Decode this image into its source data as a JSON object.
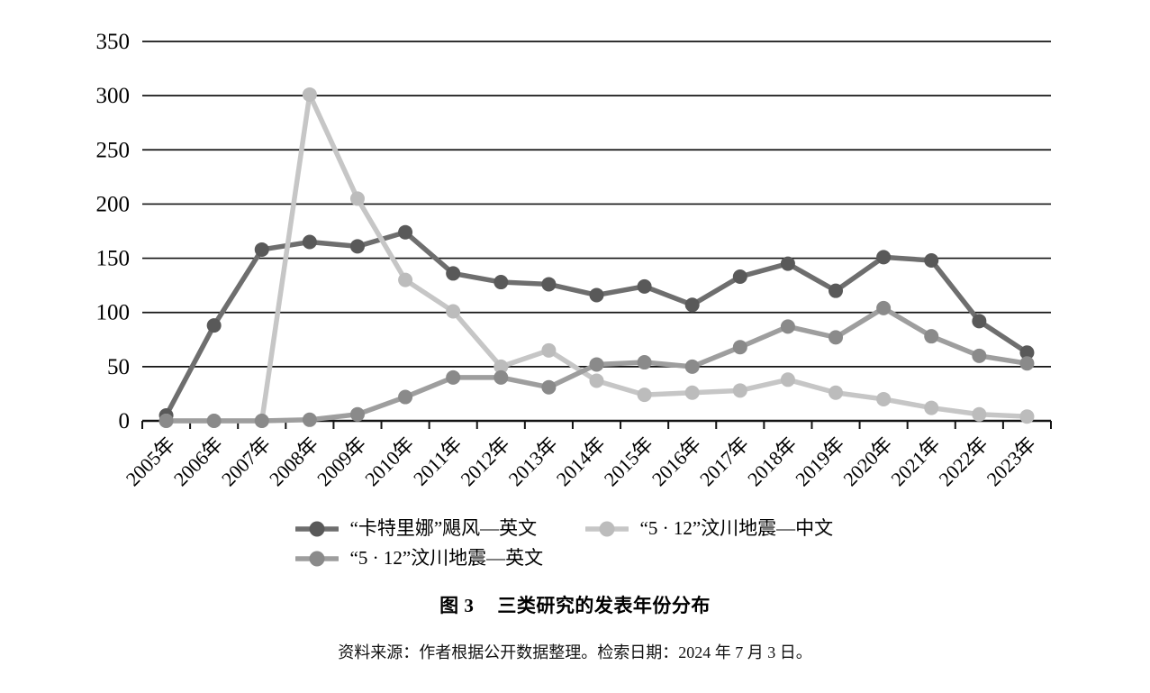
{
  "chart_data": {
    "type": "line",
    "title": "三类研究的发表年份分布",
    "xlabel": "",
    "ylabel": "",
    "ylim": [
      0,
      350
    ],
    "ytick_step": 50,
    "grid": true,
    "legend_position": "bottom",
    "categories": [
      "2005年",
      "2006年",
      "2007年",
      "2008年",
      "2009年",
      "2010年",
      "2011年",
      "2012年",
      "2013年",
      "2014年",
      "2015年",
      "2016年",
      "2017年",
      "2018年",
      "2019年",
      "2020年",
      "2021年",
      "2022年",
      "2023年"
    ],
    "series": [
      {
        "name": "“卡特里娜”飓风—英文",
        "values": [
          5,
          88,
          158,
          165,
          161,
          174,
          136,
          128,
          126,
          116,
          124,
          107,
          133,
          145,
          120,
          151,
          148,
          92,
          63
        ],
        "line_color": "#6e6e6e",
        "marker_color": "#595959"
      },
      {
        "name": "“5 · 12”汶川地震—中文",
        "values": [
          0,
          0,
          0,
          301,
          205,
          130,
          101,
          50,
          65,
          37,
          24,
          26,
          28,
          38,
          26,
          20,
          12,
          6,
          4
        ],
        "line_color": "#c6c6c6",
        "marker_color": "#bcbcbc"
      },
      {
        "name": "“5 · 12”汶川地震—英文",
        "values": [
          0,
          0,
          0,
          1,
          6,
          22,
          40,
          40,
          31,
          52,
          54,
          50,
          68,
          87,
          77,
          104,
          78,
          60,
          53
        ],
        "line_color": "#9e9e9e",
        "marker_color": "#8a8a8a"
      }
    ]
  },
  "caption": {
    "figure_label": "图 3",
    "title": "三类研究的发表年份分布"
  },
  "source_note": "资料来源：作者根据公开数据整理。检索日期：2024 年 7 月 3 日。"
}
